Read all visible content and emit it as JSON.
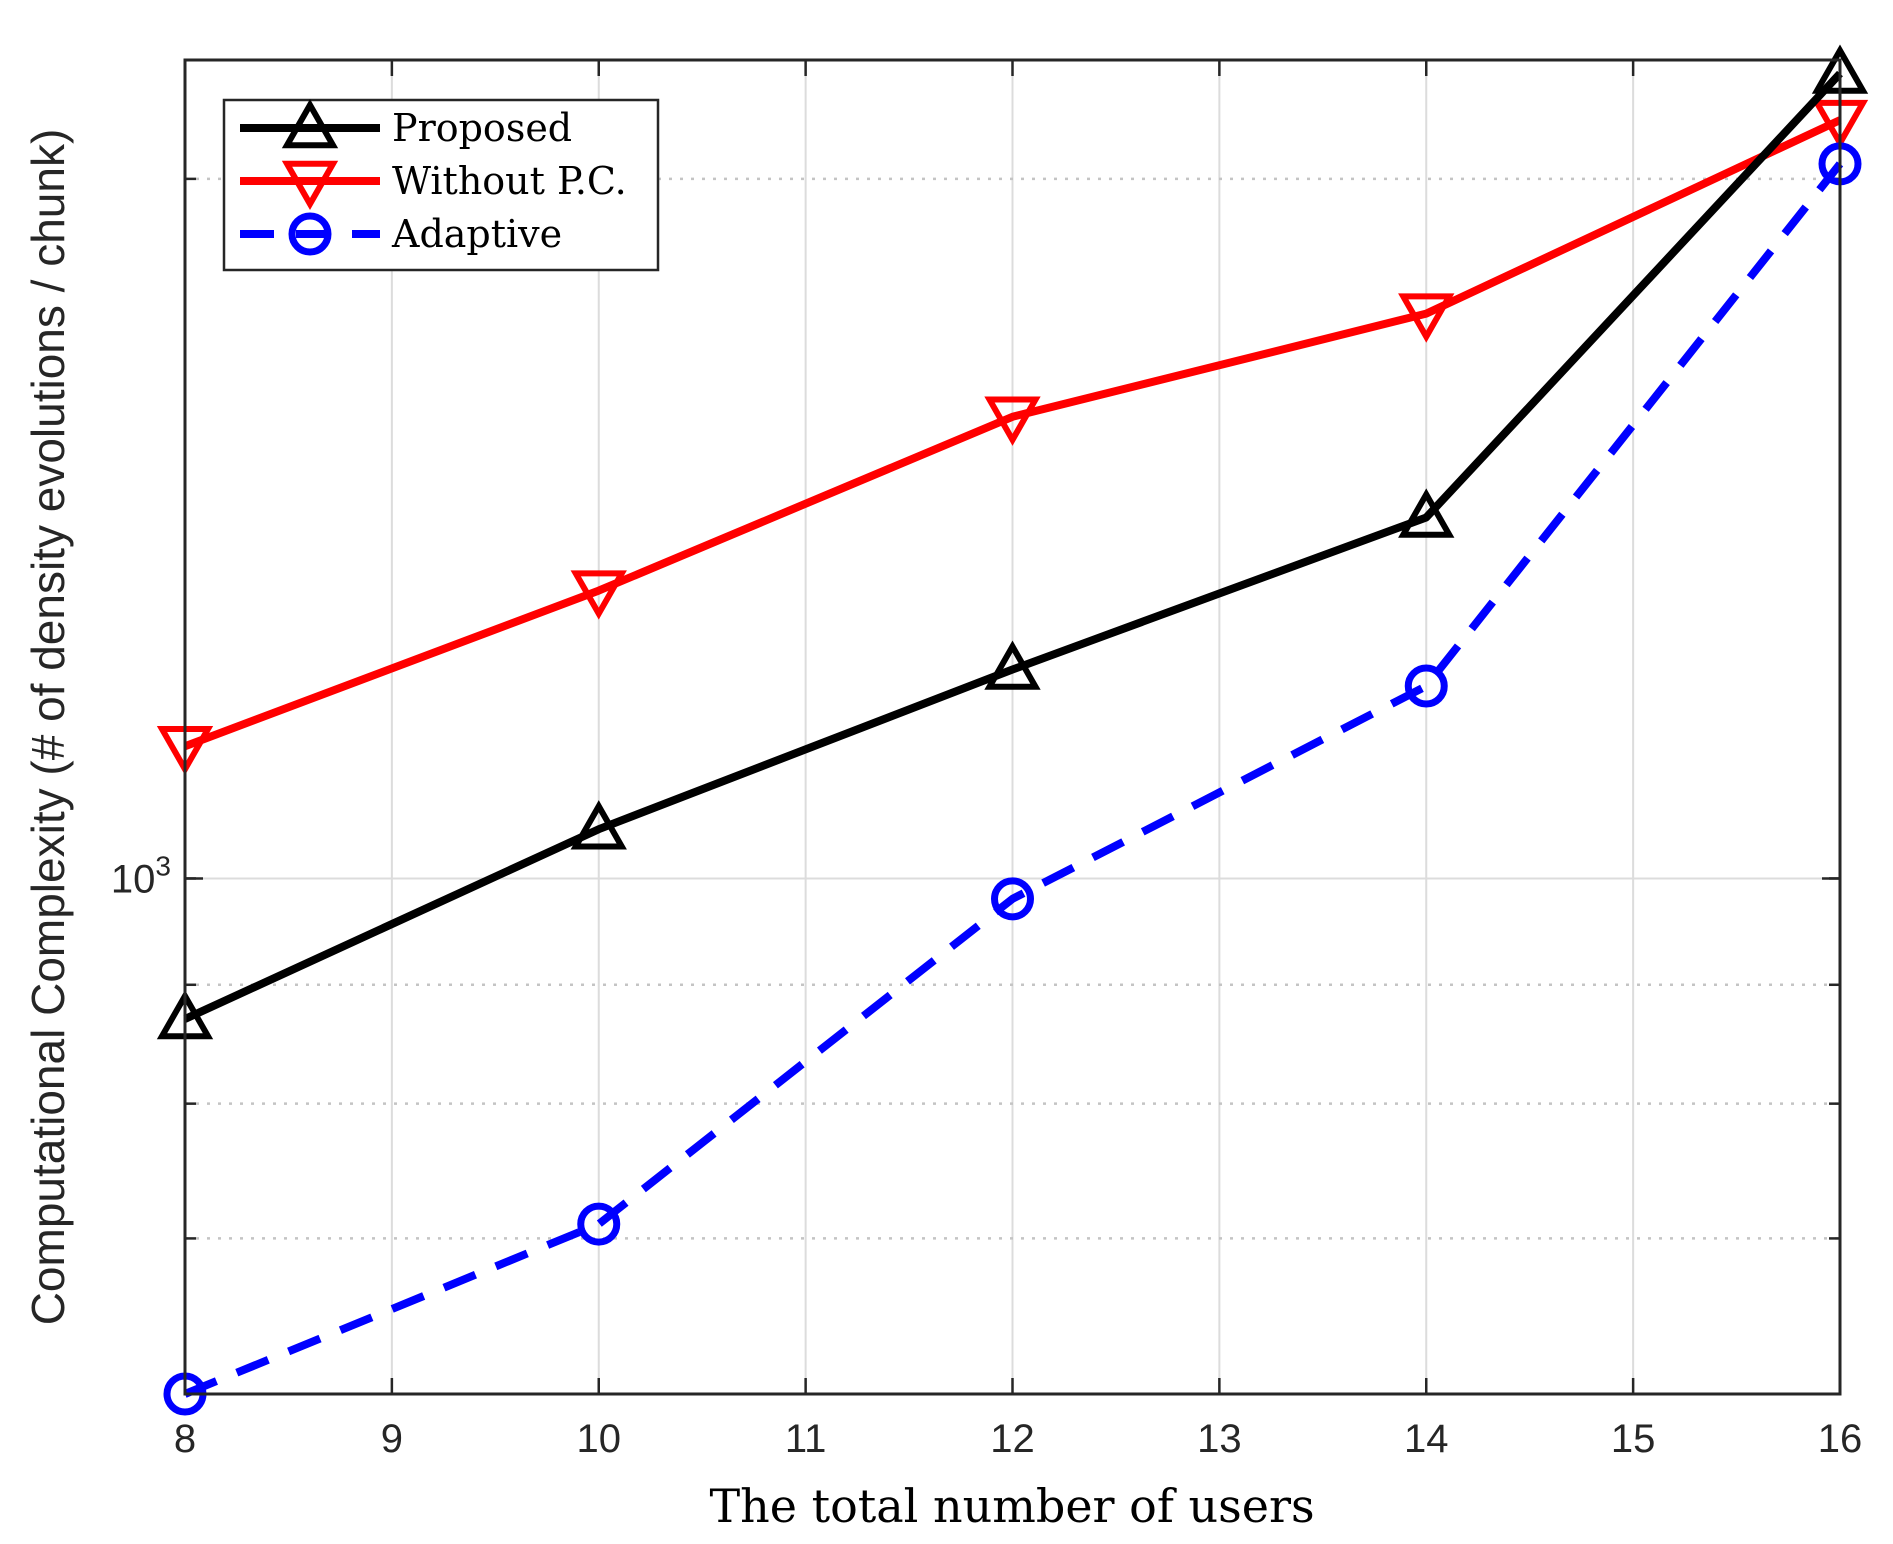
{
  "chart_data": {
    "type": "line",
    "title": "",
    "xlabel": "The total number of users",
    "ylabel": "Computational Complexity (# of density evolutions / chunk)",
    "y_scale": "log",
    "xlim": [
      8,
      16
    ],
    "ylim": [
      600,
      2250
    ],
    "grid": true,
    "x_ticks": [
      8,
      9,
      10,
      11,
      12,
      13,
      14,
      15,
      16
    ],
    "x_tick_labels": [
      "8",
      "9",
      "10",
      "11",
      "12",
      "13",
      "14",
      "15",
      "16"
    ],
    "y_major_tick": {
      "value": 1000,
      "label_base": "10",
      "label_exp": "3"
    },
    "y_minor_ticks": [
      600,
      700,
      800,
      900,
      1000,
      2000
    ],
    "legend_position": "top-left",
    "x": [
      8,
      10,
      12,
      14,
      16
    ],
    "series": [
      {
        "name": "Proposed",
        "color": "#000000",
        "dash": "solid",
        "marker": "triangle-up",
        "values": [
          870,
          1050,
          1230,
          1430,
          2220
        ]
      },
      {
        "name": "Without P.C.",
        "color": "#ff0000",
        "dash": "solid",
        "marker": "triangle-down",
        "values": [
          1140,
          1330,
          1580,
          1750,
          2120
        ]
      },
      {
        "name": "Adaptive",
        "color": "#0000ff",
        "dash": "dashed",
        "marker": "circle",
        "values": [
          600,
          710,
          980,
          1210,
          2030
        ]
      }
    ]
  }
}
